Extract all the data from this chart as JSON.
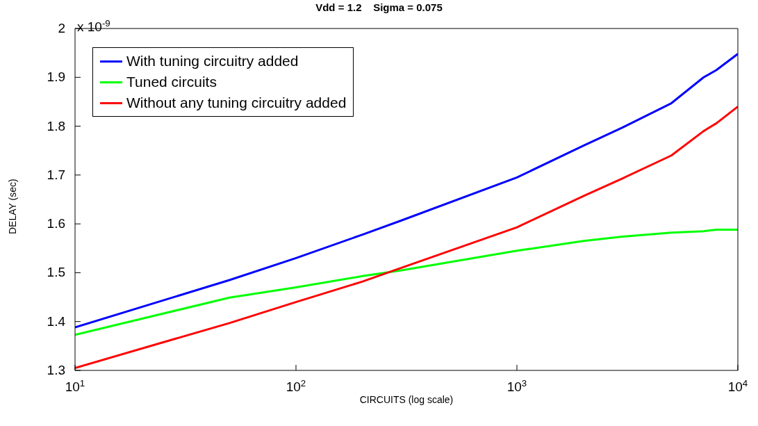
{
  "chart_data": {
    "type": "line",
    "title": "Vdd = 1.2    Sigma = 0.075",
    "xlabel": "CIRCUITS (log scale)",
    "ylabel": "DELAY (sec)",
    "annotations": [
      "x 10$^{-9}$"
    ],
    "x": [
      10,
      50,
      100,
      200,
      300,
      1000,
      2000,
      3000,
      5000,
      7000,
      8000,
      10000
    ],
    "series": [
      {
        "name": "With tuning circuitry added",
        "color": "#0000ff",
        "values": [
          1.388,
          1.485,
          1.53,
          1.578,
          1.607,
          1.695,
          1.76,
          1.797,
          1.847,
          1.9,
          1.915,
          1.948
        ]
      },
      {
        "name": "Tuned circuits",
        "color": "#00ff00",
        "values": [
          1.373,
          1.449,
          1.47,
          1.493,
          1.505,
          1.545,
          1.565,
          1.574,
          1.582,
          1.585,
          1.588,
          1.588
        ]
      },
      {
        "name": "Without any tuning circuitry added",
        "color": "#ff0000",
        "values": [
          1.305,
          1.397,
          1.44,
          1.482,
          1.51,
          1.593,
          1.657,
          1.693,
          1.74,
          1.79,
          1.806,
          1.84
        ]
      }
    ],
    "log": "x",
    "xlim": [
      10,
      10000
    ],
    "xticks": [
      {
        "value": 10,
        "label": "10$^{1}$"
      },
      {
        "value": 100,
        "label": "10$^{2}$"
      },
      {
        "value": 1000,
        "label": "10$^{3}$"
      },
      {
        "value": 10000,
        "label": "10$^{4}$"
      }
    ],
    "ylim": [
      1.3,
      2
    ],
    "yticks": [
      1.3,
      1.4,
      1.5,
      1.6,
      1.7,
      1.8,
      1.9,
      2
    ],
    "grid": false,
    "legend": "top left",
    "line_style": "solid",
    "marker": "none"
  }
}
